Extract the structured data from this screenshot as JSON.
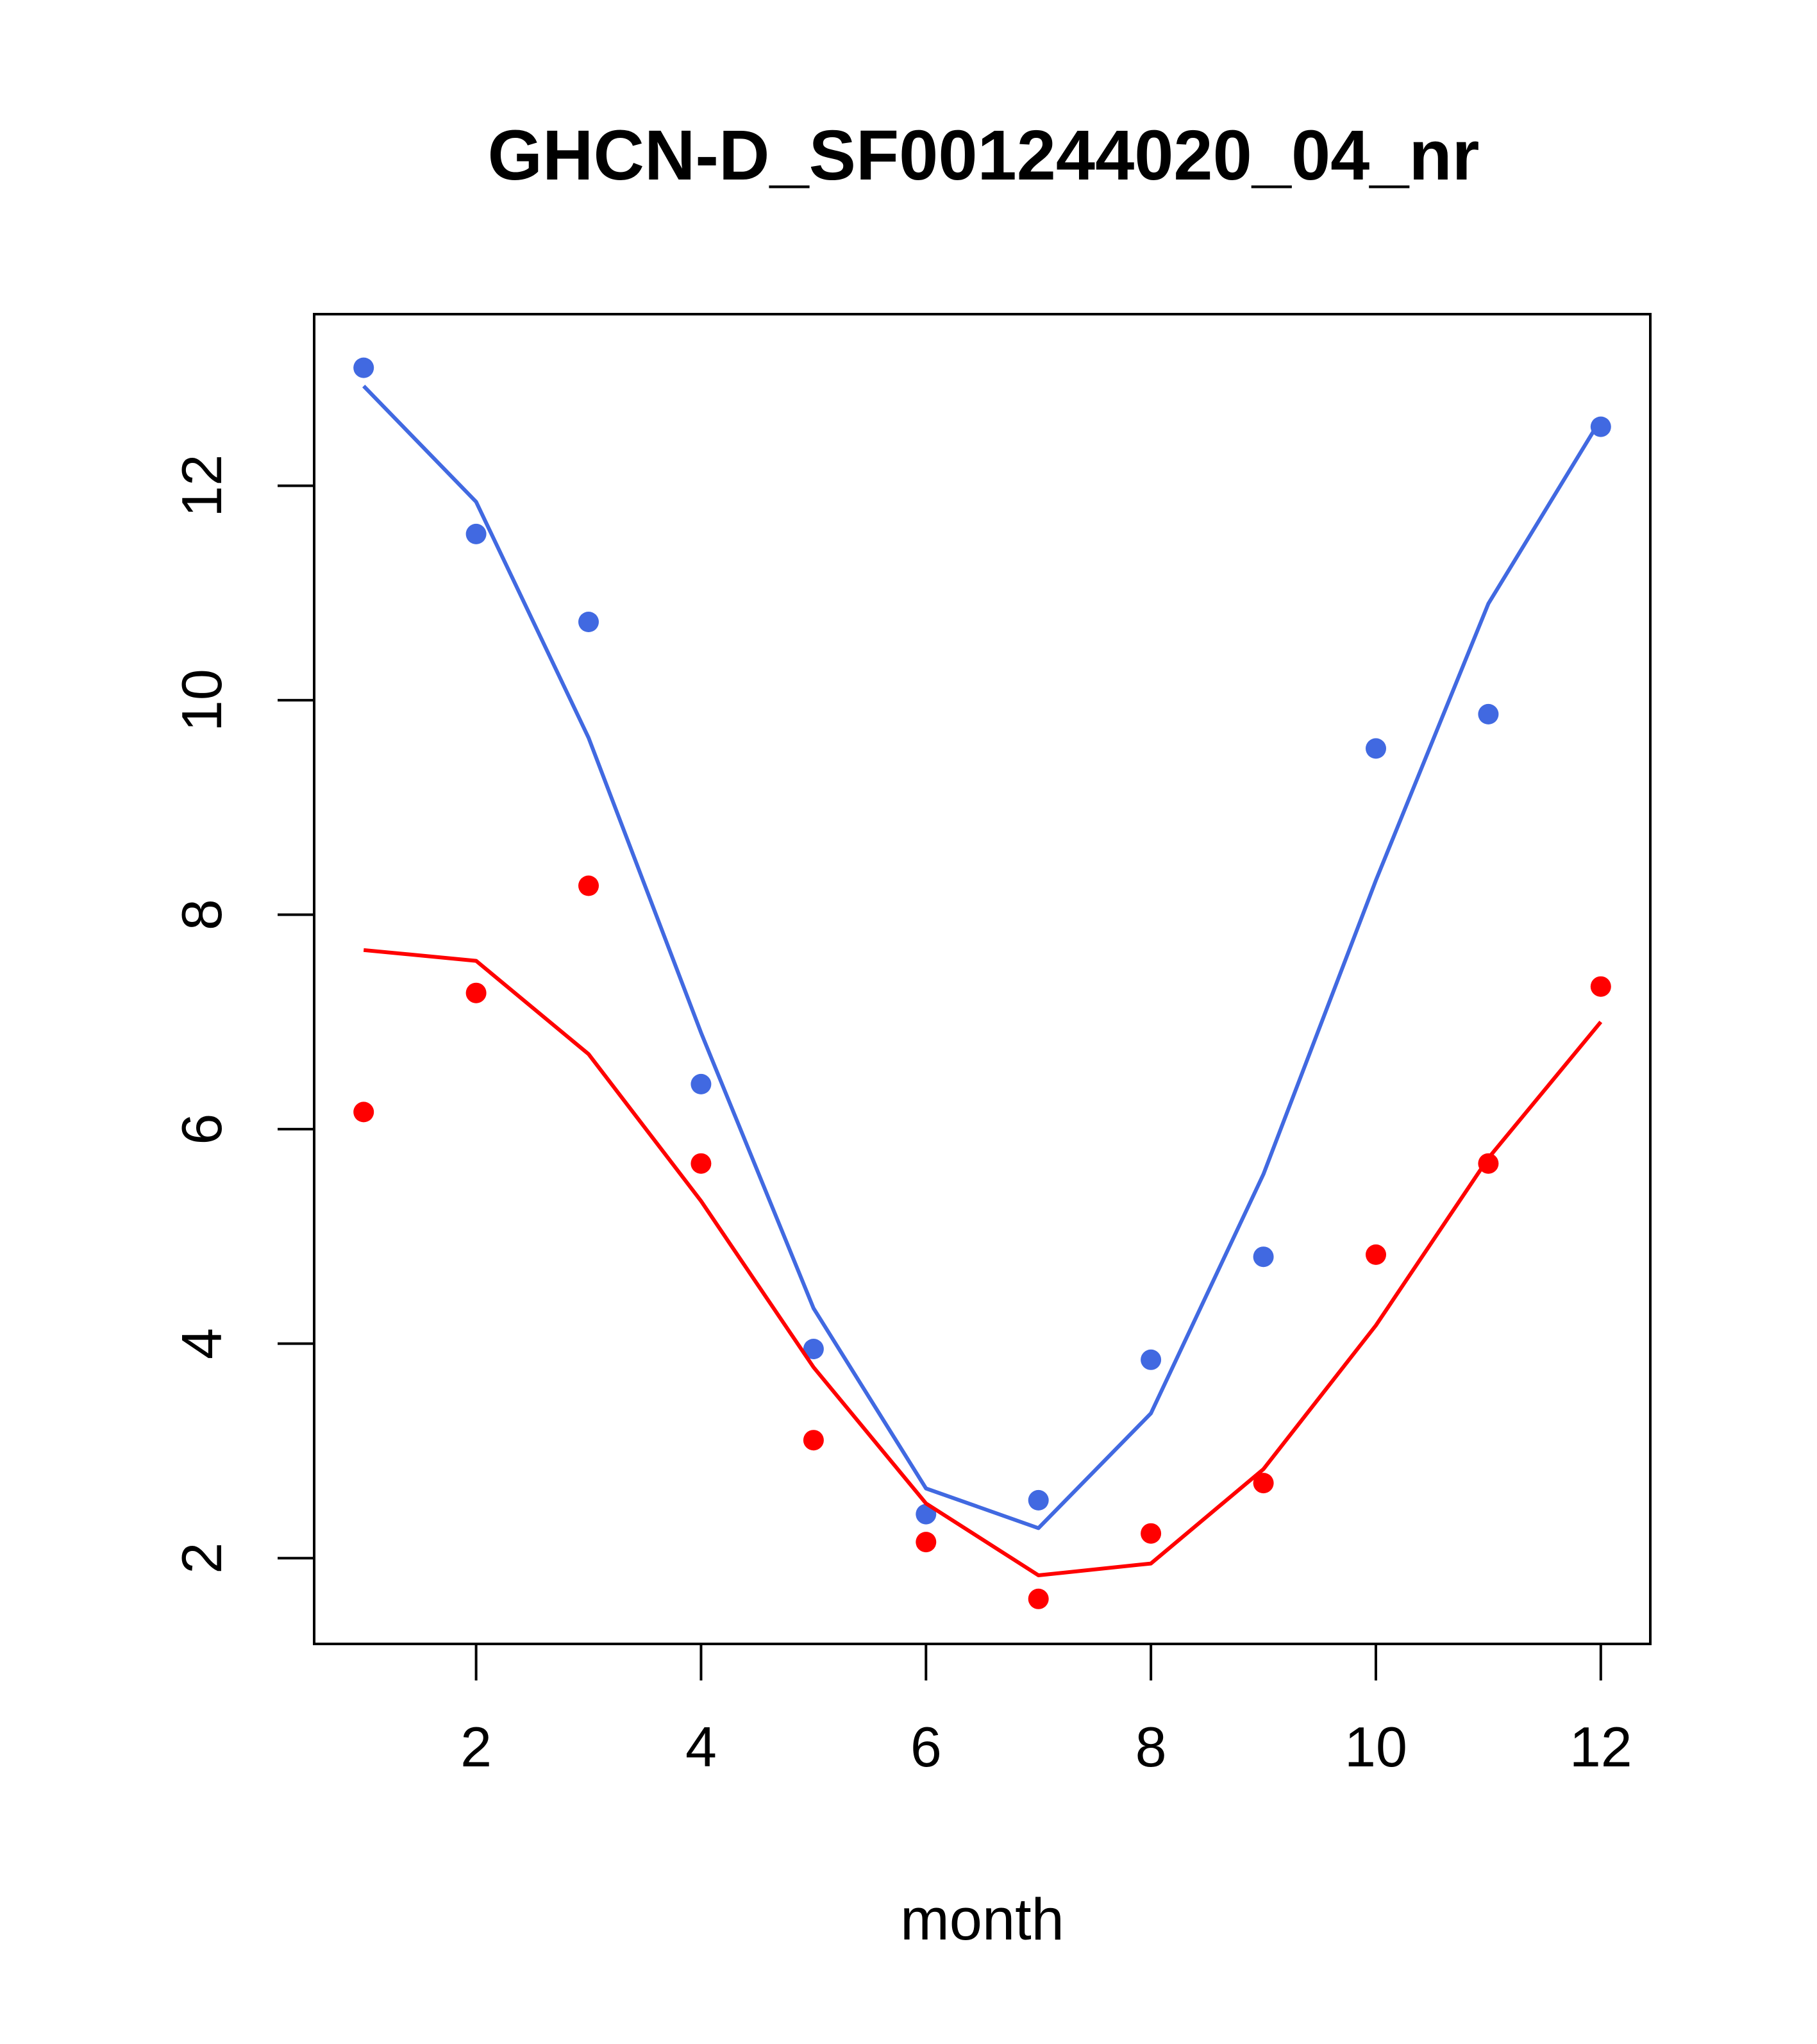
{
  "colors": {
    "blue": "#4169E1",
    "red": "#FF0000",
    "axis": "#000000",
    "background": "#FFFFFF"
  },
  "chart_data": {
    "type": "scatter",
    "title": "GHCN-D_SF001244020_04_nr",
    "xlabel": "month",
    "ylabel": "",
    "xlim": [
      0.56,
      12.44
    ],
    "ylim": [
      1.2,
      13.6
    ],
    "xticks": [
      2,
      4,
      6,
      8,
      10,
      12
    ],
    "yticks": [
      2,
      4,
      6,
      8,
      10,
      12
    ],
    "grid": false,
    "x": [
      1,
      2,
      3,
      4,
      5,
      6,
      7,
      8,
      9,
      10,
      11,
      12
    ],
    "series": [
      {
        "color": "#4169E1",
        "points": [
          13.1,
          11.55,
          10.73,
          6.42,
          3.95,
          2.41,
          2.54,
          3.85,
          4.81,
          9.55,
          9.87,
          12.55
        ],
        "line": [
          12.93,
          11.85,
          9.65,
          6.9,
          4.33,
          2.65,
          2.28,
          3.35,
          5.58,
          8.32,
          10.9,
          12.62
        ]
      },
      {
        "color": "#FF0000",
        "points": [
          6.16,
          7.27,
          8.27,
          5.68,
          3.1,
          2.15,
          1.62,
          2.23,
          2.7,
          4.83,
          5.68,
          7.33
        ],
        "line": [
          7.67,
          7.57,
          6.7,
          5.33,
          3.78,
          2.51,
          1.84,
          1.95,
          2.83,
          4.17,
          5.73,
          7.0
        ]
      }
    ]
  }
}
